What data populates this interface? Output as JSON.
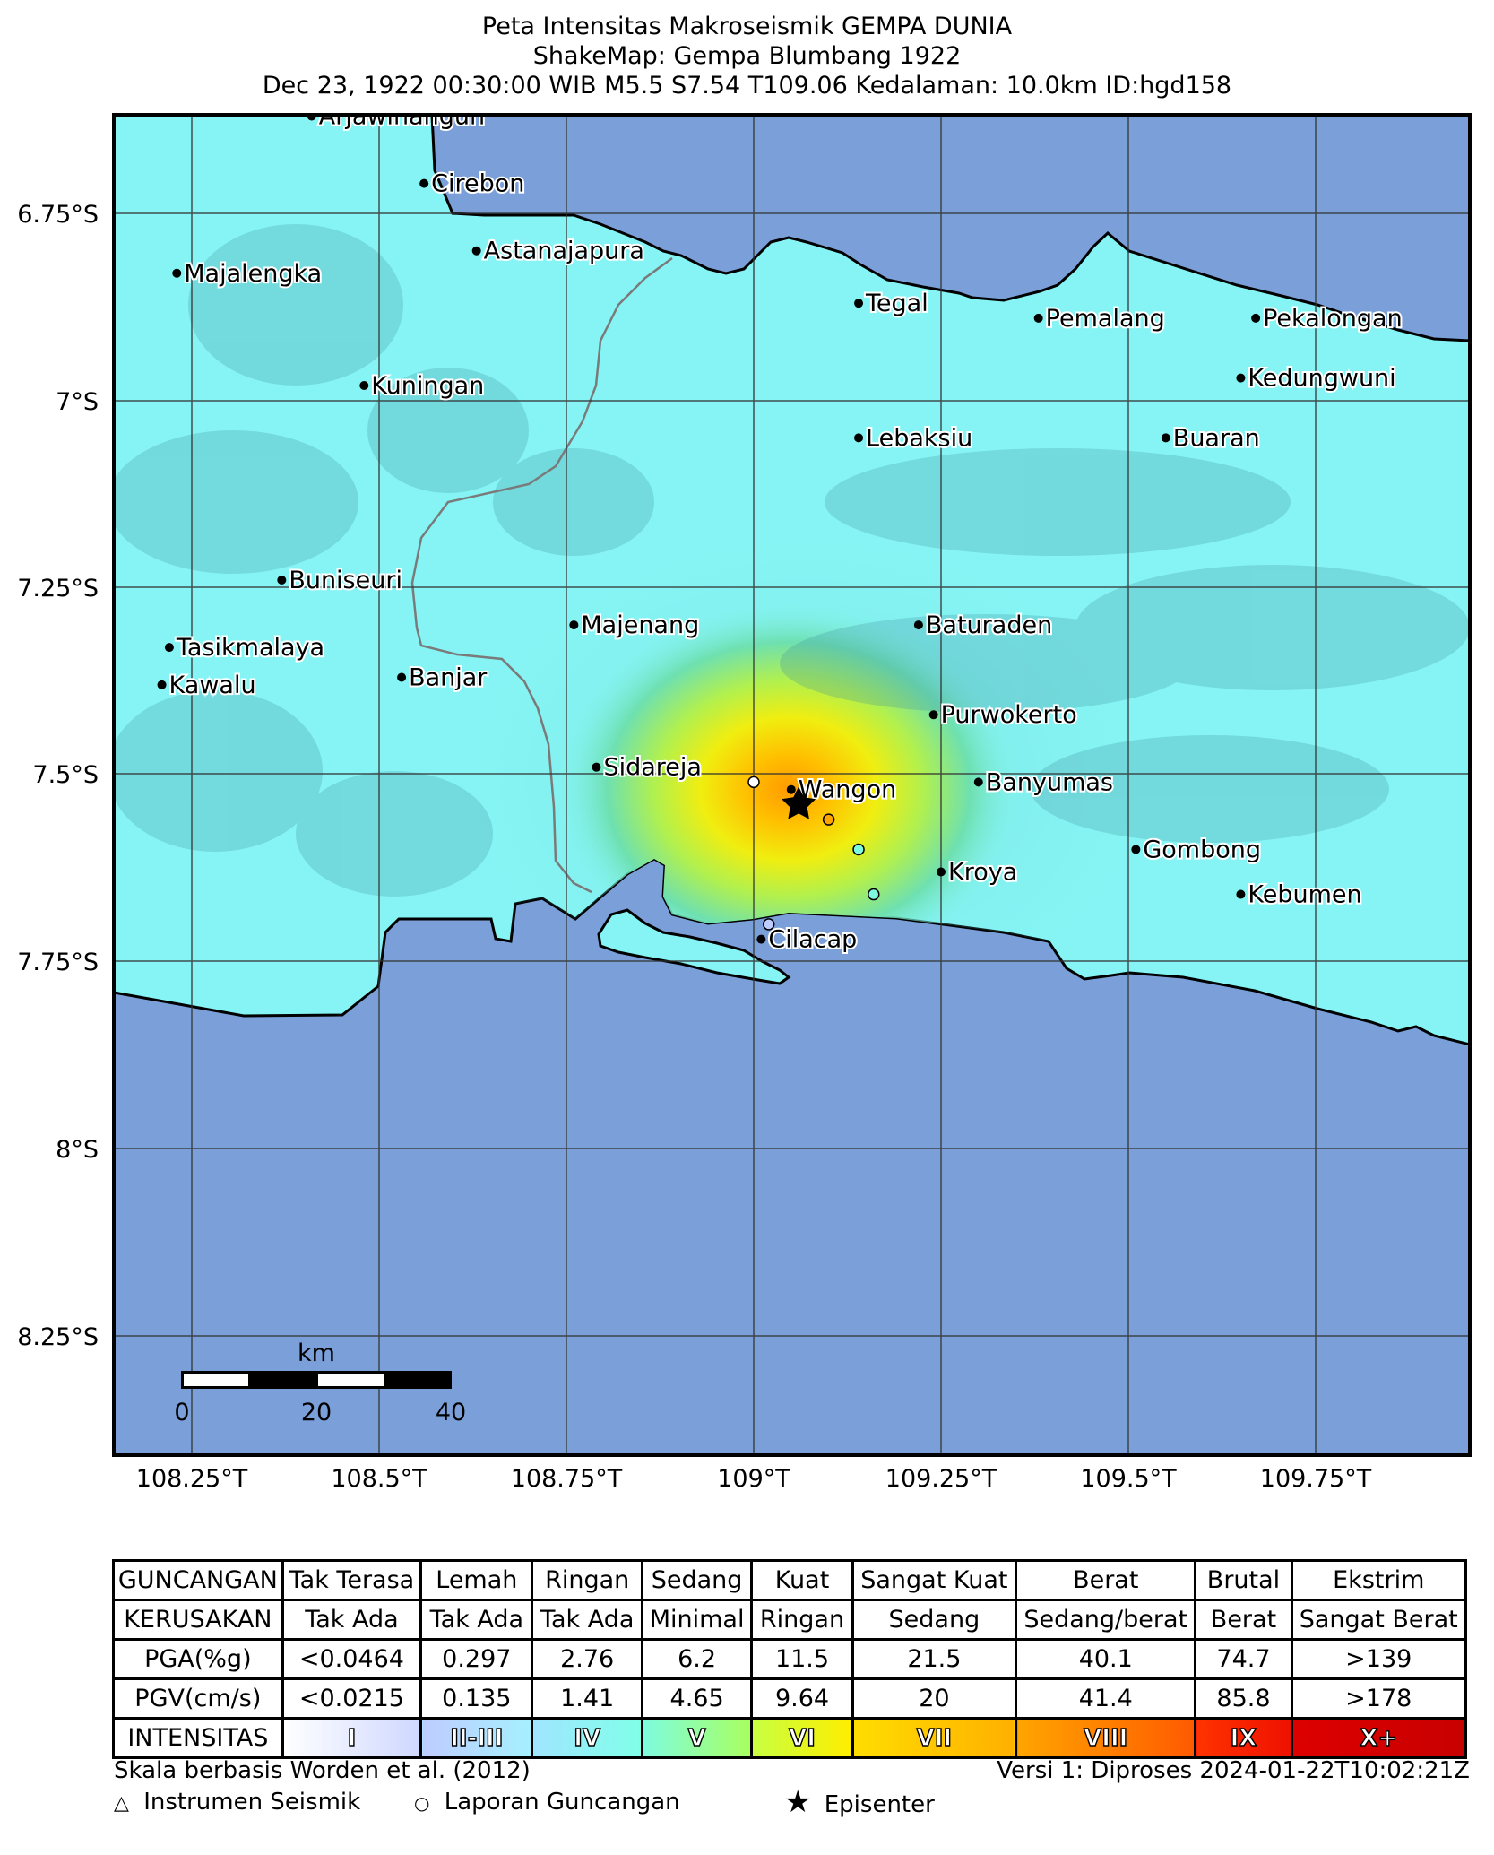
{
  "header": {
    "line1": "Peta Intensitas Makroseismik GEMPA DUNIA",
    "line2": "ShakeMap: Gempa Blumbang 1922",
    "line3": "Dec 23, 1922 00:30:00 WIB M5.5 S7.54 T109.06 Kedalaman: 10.0km ID:hgd158"
  },
  "map": {
    "lat_labels": [
      "6.75°S",
      "7°S",
      "7.25°S",
      "7.5°S",
      "7.75°S",
      "8°S",
      "8.25°S"
    ],
    "lon_labels": [
      "108.25°T",
      "108.5°T",
      "108.75°T",
      "109°T",
      "109.25°T",
      "109.5°T",
      "109.75°T"
    ],
    "epicenter": {
      "lat": -7.54,
      "lon": 109.06
    },
    "cities": [
      {
        "name": "Arjawinangun",
        "lon": 108.41,
        "lat": -6.62
      },
      {
        "name": "Cirebon",
        "lon": 108.56,
        "lat": -6.71
      },
      {
        "name": "Astanajapura",
        "lon": 108.63,
        "lat": -6.8
      },
      {
        "name": "Majalengka",
        "lon": 108.23,
        "lat": -6.83
      },
      {
        "name": "Tegal",
        "lon": 109.14,
        "lat": -6.87
      },
      {
        "name": "Pemalang",
        "lon": 109.38,
        "lat": -6.89
      },
      {
        "name": "Pekalongan",
        "lon": 109.67,
        "lat": -6.89
      },
      {
        "name": "Kuningan",
        "lon": 108.48,
        "lat": -6.98
      },
      {
        "name": "Kedungwuni",
        "lon": 109.65,
        "lat": -6.97
      },
      {
        "name": "Lebaksiu",
        "lon": 109.14,
        "lat": -7.05
      },
      {
        "name": "Buaran",
        "lon": 109.55,
        "lat": -7.05
      },
      {
        "name": "Buniseuri",
        "lon": 108.37,
        "lat": -7.24
      },
      {
        "name": "Majenang",
        "lon": 108.76,
        "lat": -7.3
      },
      {
        "name": "Baturaden",
        "lon": 109.22,
        "lat": -7.3
      },
      {
        "name": "Tasikmalaya",
        "lon": 108.22,
        "lat": -7.33
      },
      {
        "name": "Banjar",
        "lon": 108.53,
        "lat": -7.37
      },
      {
        "name": "Kawalu",
        "lon": 108.21,
        "lat": -7.38
      },
      {
        "name": "Purwokerto",
        "lon": 109.24,
        "lat": -7.42
      },
      {
        "name": "Sidareja",
        "lon": 108.79,
        "lat": -7.49
      },
      {
        "name": "Wangon",
        "lon": 109.05,
        "lat": -7.52
      },
      {
        "name": "Banyumas",
        "lon": 109.3,
        "lat": -7.51
      },
      {
        "name": "Gombong",
        "lon": 109.51,
        "lat": -7.6
      },
      {
        "name": "Kroya",
        "lon": 109.25,
        "lat": -7.63
      },
      {
        "name": "Kebumen",
        "lon": 109.65,
        "lat": -7.66
      },
      {
        "name": "Cilacap",
        "lon": 109.01,
        "lat": -7.72
      }
    ],
    "reports": [
      {
        "lon": 109.0,
        "lat": -7.51,
        "color": "#ffffff"
      },
      {
        "lon": 109.1,
        "lat": -7.56,
        "color": "#ffa500"
      },
      {
        "lon": 109.14,
        "lat": -7.6,
        "color": "#7efbdf"
      },
      {
        "lon": 109.16,
        "lat": -7.66,
        "color": "#7efbdf"
      },
      {
        "lon": 109.02,
        "lat": -7.7,
        "color": "#bfccff"
      }
    ],
    "scalebar": {
      "unit": "km",
      "ticks": [
        "0",
        "20",
        "40"
      ]
    }
  },
  "legend": {
    "rows": [
      {
        "head": "GUNCANGAN",
        "cells": [
          "Tak Terasa",
          "Lemah",
          "Ringan",
          "Sedang",
          "Kuat",
          "Sangat Kuat",
          "Berat",
          "Brutal",
          "Ekstrim"
        ]
      },
      {
        "head": "KERUSAKAN",
        "cells": [
          "Tak Ada",
          "Tak Ada",
          "Tak Ada",
          "Minimal",
          "Ringan",
          "Sedang",
          "Sedang/berat",
          "Berat",
          "Sangat Berat"
        ]
      },
      {
        "head": "PGA(%g)",
        "cells": [
          "<0.0464",
          "0.297",
          "2.76",
          "6.2",
          "11.5",
          "21.5",
          "40.1",
          "74.7",
          ">139"
        ]
      },
      {
        "head": "PGV(cm/s)",
        "cells": [
          "<0.0215",
          "0.135",
          "1.41",
          "4.65",
          "9.64",
          "20",
          "41.4",
          "85.8",
          ">178"
        ]
      }
    ],
    "intensity_head": "INTENSITAS",
    "intensity": [
      {
        "label": "I",
        "from": "#ffffff",
        "to": "#cfd8ff"
      },
      {
        "label": "II-III",
        "from": "#bfccff",
        "to": "#a5f0ff"
      },
      {
        "label": "IV",
        "from": "#a0e6ff",
        "to": "#80ffe8"
      },
      {
        "label": "V",
        "from": "#7efbdf",
        "to": "#a8ff60"
      },
      {
        "label": "VI",
        "from": "#c8ff40",
        "to": "#ffee00"
      },
      {
        "label": "VII",
        "from": "#ffdd00",
        "to": "#ffb000"
      },
      {
        "label": "VIII",
        "from": "#ffa500",
        "to": "#ff5a00"
      },
      {
        "label": "IX",
        "from": "#ff3300",
        "to": "#ee1100"
      },
      {
        "label": "X+",
        "from": "#dd0000",
        "to": "#c80000"
      }
    ]
  },
  "footer": {
    "scale_note": "Skala berbasis Worden et al. (2012)",
    "version": "Versi 1: Diproses 2024-01-22T10:02:21Z",
    "instrument": "Instrumen Seismik",
    "report": "Laporan Guncangan",
    "epicenter": "Episenter"
  }
}
